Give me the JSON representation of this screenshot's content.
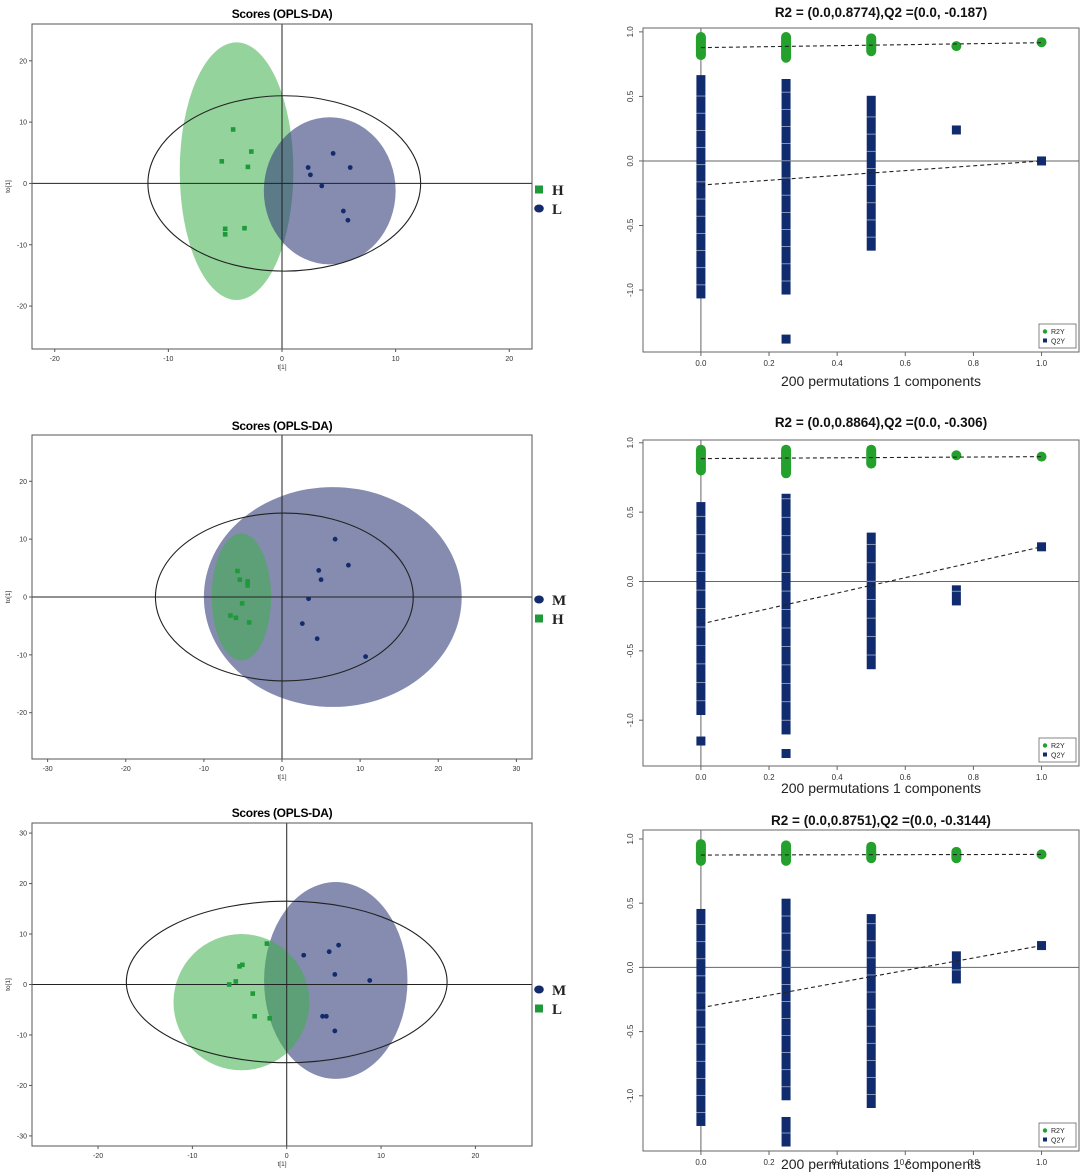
{
  "colors": {
    "green_fill": "#3cb04b",
    "green_marker": "#1e9a3a",
    "blue_fill": "#33407a",
    "blue_marker": "#132a6b",
    "perm_green": "#24a02c",
    "perm_blue": "#102b6e",
    "axis": "#333333"
  },
  "chart_data": [
    {
      "panel": "scores-1",
      "type": "scatter",
      "title": "Scores (OPLS-DA)",
      "xlabel": "t[1]",
      "ylabel": "to[1]",
      "xlim": [
        -22,
        22
      ],
      "ylim": [
        -27,
        26
      ],
      "xticks": [
        -20,
        -10,
        0,
        10,
        20
      ],
      "yticks": [
        -20,
        -10,
        0,
        10,
        20
      ],
      "tick_labels_x": [
        "-20",
        "-10",
        "0",
        "10",
        "20"
      ],
      "tick_labels_y": [
        "-20",
        "-10",
        "0",
        "10",
        "20"
      ],
      "hotelling_ellipse": {
        "cx": 0.2,
        "cy": 0,
        "rx": 12,
        "ry": 14.3
      },
      "groups": [
        {
          "name": "H",
          "color": "green",
          "marker": "square",
          "ellipse": {
            "cx": -4,
            "cy": 2,
            "rx": 5,
            "ry": 21
          },
          "points": [
            [
              -5.3,
              3.6
            ],
            [
              -4.3,
              8.8
            ],
            [
              -3,
              2.7
            ],
            [
              -2.7,
              5.2
            ],
            [
              -5,
              -7.4
            ],
            [
              -5,
              -8.3
            ],
            [
              -3.3,
              -7.3
            ]
          ]
        },
        {
          "name": "L",
          "color": "blue",
          "marker": "circle",
          "ellipse": {
            "cx": 4.2,
            "cy": -1.2,
            "rx": 5.8,
            "ry": 12
          },
          "points": [
            [
              2.3,
              2.6
            ],
            [
              2.5,
              1.4
            ],
            [
              3.5,
              -0.4
            ],
            [
              4.5,
              4.9
            ],
            [
              6,
              2.6
            ],
            [
              5.4,
              -4.5
            ],
            [
              5.8,
              -6
            ]
          ]
        }
      ],
      "legend": [
        "H",
        "L"
      ]
    },
    {
      "panel": "scores-2",
      "type": "scatter",
      "title": "Scores (OPLS-DA)",
      "xlabel": "t[1]",
      "ylabel": "to[1]",
      "xlim": [
        -32,
        32
      ],
      "ylim": [
        -28,
        28
      ],
      "xticks": [
        -30,
        -20,
        -10,
        0,
        10,
        20,
        30
      ],
      "yticks": [
        -20,
        -10,
        0,
        10,
        20
      ],
      "tick_labels_x": [
        "-30",
        "-20",
        "-10",
        "0",
        "10",
        "20",
        "30"
      ],
      "tick_labels_y": [
        "-20",
        "-10",
        "0",
        "10",
        "20"
      ],
      "hotelling_ellipse": {
        "cx": 0.3,
        "cy": 0,
        "rx": 16.5,
        "ry": 14.5
      },
      "groups": [
        {
          "name": "M",
          "color": "blue",
          "marker": "circle",
          "ellipse": {
            "cx": 6.5,
            "cy": 0,
            "rx": 16.5,
            "ry": 19
          },
          "points": [
            [
              6.8,
              10
            ],
            [
              8.5,
              5.5
            ],
            [
              4.7,
              4.6
            ],
            [
              5,
              3
            ],
            [
              3.4,
              -0.3
            ],
            [
              2.6,
              -4.6
            ],
            [
              4.5,
              -7.2
            ],
            [
              10.7,
              -10.3
            ]
          ]
        },
        {
          "name": "H",
          "color": "green",
          "marker": "square",
          "ellipse": {
            "cx": -5.2,
            "cy": 0,
            "rx": 3.8,
            "ry": 11
          },
          "points": [
            [
              -5.7,
              4.5
            ],
            [
              -5.4,
              3
            ],
            [
              -4.4,
              2.7
            ],
            [
              -4.4,
              2
            ],
            [
              -5.1,
              -1.1
            ],
            [
              -6.6,
              -3.2
            ],
            [
              -5.9,
              -3.6
            ],
            [
              -4.2,
              -4.4
            ]
          ]
        }
      ],
      "legend": [
        "M",
        "H"
      ]
    },
    {
      "panel": "scores-3",
      "type": "scatter",
      "title": "Scores (OPLS-DA)",
      "xlabel": "t[1]",
      "ylabel": "to[1]",
      "xlim": [
        -27,
        26
      ],
      "ylim": [
        -32,
        32
      ],
      "xticks": [
        -20,
        -10,
        0,
        10,
        20
      ],
      "yticks": [
        -30,
        -20,
        -10,
        0,
        10,
        20,
        30
      ],
      "tick_labels_x": [
        "-20",
        "-10",
        "0",
        "10",
        "20"
      ],
      "tick_labels_y": [
        "-30",
        "-20",
        "-10",
        "0",
        "10",
        "20",
        "30"
      ],
      "hotelling_ellipse": {
        "cx": 0,
        "cy": 0.5,
        "rx": 17,
        "ry": 16
      },
      "groups": [
        {
          "name": "M",
          "color": "blue",
          "marker": "circle",
          "ellipse": {
            "cx": 5.2,
            "cy": 0.8,
            "rx": 7.6,
            "ry": 19.5
          },
          "points": [
            [
              1.8,
              5.8
            ],
            [
              4.5,
              6.5
            ],
            [
              5.5,
              7.8
            ],
            [
              5.1,
              2
            ],
            [
              8.8,
              0.8
            ],
            [
              3.8,
              -6.3
            ],
            [
              4.2,
              -6.3
            ],
            [
              5.1,
              -9.2
            ]
          ]
        },
        {
          "name": "L",
          "color": "green",
          "marker": "square",
          "ellipse": {
            "cx": -4.8,
            "cy": -3.5,
            "rx": 7.2,
            "ry": 13.5
          },
          "points": [
            [
              -2.1,
              8.1
            ],
            [
              -4.7,
              3.9
            ],
            [
              -5,
              3.6
            ],
            [
              -5.4,
              0.6
            ],
            [
              -6.1,
              0
            ],
            [
              -3.6,
              -1.8
            ],
            [
              -3.4,
              -6.3
            ],
            [
              -1.8,
              -6.7
            ]
          ]
        }
      ],
      "legend": [
        "M",
        "L"
      ]
    },
    {
      "panel": "perm-1",
      "type": "scatter",
      "title": "R2 = (0.0,0.8774),Q2 =(0.0, -0.187)",
      "xlabel": "200 permutations 1 components",
      "ylabel": "",
      "xlim": [
        -0.17,
        1.11
      ],
      "ylim": [
        -1.48,
        1.03
      ],
      "xticks": [
        0.0,
        0.2,
        0.4,
        0.6,
        0.8,
        1.0
      ],
      "yticks": [
        1.0,
        0.5,
        0.0,
        -0.5,
        -1.0
      ],
      "tick_labels_x": [
        "0.0",
        "0.2",
        "0.4",
        "0.6",
        "0.8",
        "1.0"
      ],
      "tick_labels_y": [
        "1.0",
        "0.5",
        "0.0",
        "-0.5",
        "-1.0"
      ],
      "r2_line": {
        "intercept": 0.878,
        "end": [
          1.0,
          0.916
        ]
      },
      "q2_line": {
        "intercept": -0.187,
        "end": [
          1.0,
          0.0
        ]
      },
      "r2_points": [
        {
          "x": 0.0,
          "from": 0.82,
          "to": 0.96
        },
        {
          "x": 0.25,
          "from": 0.8,
          "to": 0.96
        },
        {
          "x": 0.5,
          "from": 0.85,
          "to": 0.95
        },
        {
          "x": 0.75,
          "y": 0.89
        },
        {
          "x": 1.0,
          "y": 0.92
        }
      ],
      "q2_points": [
        {
          "x": 0.0,
          "from": -1.03,
          "to": 0.63
        },
        {
          "x": 0.25,
          "from": -1.0,
          "to": 0.6
        },
        {
          "x": 0.25,
          "y": -1.38
        },
        {
          "x": 0.5,
          "from": -0.66,
          "to": 0.47
        },
        {
          "x": 0.75,
          "y": 0.24
        },
        {
          "x": 1.0,
          "y": 0.0
        }
      ],
      "legend": [
        "R2Y",
        "Q2Y"
      ]
    },
    {
      "panel": "perm-2",
      "type": "scatter",
      "title": "R2 = (0.0,0.8864),Q2 =(0.0, -0.306)",
      "xlabel": "200 permutations 1 components",
      "ylabel": "",
      "xlim": [
        -0.17,
        1.11
      ],
      "ylim": [
        -1.33,
        1.02
      ],
      "xticks": [
        0.0,
        0.2,
        0.4,
        0.6,
        0.8,
        1.0
      ],
      "yticks": [
        1.0,
        0.5,
        0.0,
        -0.5,
        -1.0
      ],
      "tick_labels_x": [
        "0.0",
        "0.2",
        "0.4",
        "0.6",
        "0.8",
        "1.0"
      ],
      "tick_labels_y": [
        "1.0",
        "0.5",
        "0.0",
        "-0.5",
        "-1.0"
      ],
      "r2_line": {
        "intercept": 0.886,
        "end": [
          1.0,
          0.9
        ]
      },
      "q2_line": {
        "intercept": -0.306,
        "end": [
          1.0,
          0.25
        ]
      },
      "r2_points": [
        {
          "x": 0.0,
          "from": 0.8,
          "to": 0.95
        },
        {
          "x": 0.25,
          "from": 0.78,
          "to": 0.95
        },
        {
          "x": 0.5,
          "from": 0.85,
          "to": 0.95
        },
        {
          "x": 0.75,
          "y": 0.91
        },
        {
          "x": 1.0,
          "y": 0.9
        }
      ],
      "q2_points": [
        {
          "x": 0.0,
          "from": -0.93,
          "to": 0.54
        },
        {
          "x": 0.0,
          "y": -1.15
        },
        {
          "x": 0.25,
          "from": -1.07,
          "to": 0.6
        },
        {
          "x": 0.25,
          "y": -1.24
        },
        {
          "x": 0.5,
          "from": -0.6,
          "to": 0.32
        },
        {
          "x": 0.75,
          "from": -0.14,
          "to": -0.06
        },
        {
          "x": 1.0,
          "y": 0.25
        }
      ],
      "legend": [
        "R2Y",
        "Q2Y"
      ]
    },
    {
      "panel": "perm-3",
      "type": "scatter",
      "title": "R2 = (0.0,0.8751),Q2 =(0.0, -0.3144)",
      "xlabel": "200 permutations 1 components",
      "ylabel": "",
      "xlim": [
        -0.17,
        1.11
      ],
      "ylim": [
        -1.43,
        1.07
      ],
      "xticks": [
        0.0,
        0.2,
        0.4,
        0.6,
        0.8,
        1.0
      ],
      "yticks": [
        1.0,
        0.5,
        0.0,
        -0.5,
        -1.0
      ],
      "tick_labels_x": [
        "0.0",
        "0.2",
        "0.4",
        "0.6",
        "0.8",
        "1.0"
      ],
      "tick_labels_y": [
        "1.0",
        "0.5",
        "0.0",
        "-0.5",
        "-1.0"
      ],
      "r2_line": {
        "intercept": 0.875,
        "end": [
          1.0,
          0.88
        ]
      },
      "q2_line": {
        "intercept": -0.314,
        "end": [
          1.0,
          0.17
        ]
      },
      "r2_points": [
        {
          "x": 0.0,
          "from": 0.83,
          "to": 0.96
        },
        {
          "x": 0.25,
          "from": 0.83,
          "to": 0.95
        },
        {
          "x": 0.5,
          "from": 0.85,
          "to": 0.94
        },
        {
          "x": 0.75,
          "from": 0.85,
          "to": 0.9
        },
        {
          "x": 1.0,
          "y": 0.88
        }
      ],
      "q2_points": [
        {
          "x": 0.0,
          "from": -1.2,
          "to": 0.42
        },
        {
          "x": 0.25,
          "from": -1.0,
          "to": 0.5
        },
        {
          "x": 0.25,
          "from": -1.36,
          "to": -1.2
        },
        {
          "x": 0.5,
          "from": -1.06,
          "to": 0.38
        },
        {
          "x": 0.75,
          "from": -0.09,
          "to": 0.09
        },
        {
          "x": 1.0,
          "y": 0.17
        }
      ],
      "legend": [
        "R2Y",
        "Q2Y"
      ]
    }
  ]
}
